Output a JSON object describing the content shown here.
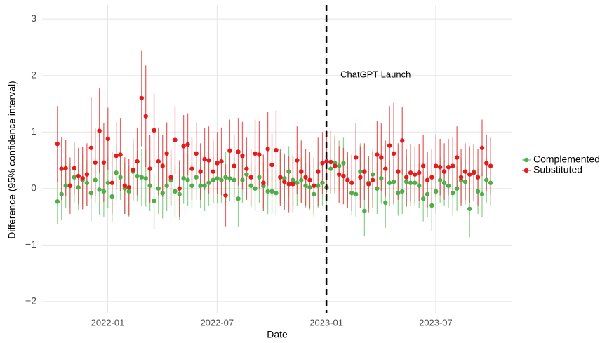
{
  "chart_data": {
    "type": "errorbar-points",
    "x_label": "Date",
    "y_label": "Difference (95% confidence interval)",
    "xlim": [
      2021.7,
      2023.85
    ],
    "ylim": [
      -2.2,
      3.25
    ],
    "xticks": [
      {
        "value": 2022.0,
        "label": "2022-01"
      },
      {
        "value": 2022.5,
        "label": "2022-07"
      },
      {
        "value": 2023.0,
        "label": "2023-01"
      },
      {
        "value": 2023.5,
        "label": "2023-07"
      }
    ],
    "yticks": [
      {
        "value": -2,
        "label": "−2"
      },
      {
        "value": -1,
        "label": "−1"
      },
      0,
      1,
      2,
      3
    ],
    "grid": true,
    "legend": "right",
    "vline": {
      "x": 2023.0,
      "label": "ChatGPT Launch"
    },
    "x": [
      2021.77,
      2021.789,
      2021.808,
      2021.828,
      2021.847,
      2021.866,
      2021.885,
      2021.905,
      2021.924,
      2021.943,
      2021.962,
      2021.982,
      2022.001,
      2022.02,
      2022.039,
      2022.058,
      2022.078,
      2022.097,
      2022.116,
      2022.135,
      2022.155,
      2022.174,
      2022.193,
      2022.212,
      2022.232,
      2022.251,
      2022.27,
      2022.289,
      2022.308,
      2022.328,
      2022.347,
      2022.366,
      2022.385,
      2022.405,
      2022.424,
      2022.443,
      2022.462,
      2022.482,
      2022.501,
      2022.52,
      2022.539,
      2022.558,
      2022.578,
      2022.597,
      2022.616,
      2022.635,
      2022.655,
      2022.674,
      2022.693,
      2022.712,
      2022.732,
      2022.751,
      2022.77,
      2022.789,
      2022.808,
      2022.828,
      2022.847,
      2022.866,
      2022.885,
      2022.905,
      2022.924,
      2022.943,
      2022.962,
      2022.982,
      2023.001,
      2023.02,
      2023.039,
      2023.058,
      2023.078,
      2023.097,
      2023.116,
      2023.135,
      2023.155,
      2023.174,
      2023.193,
      2023.212,
      2023.232,
      2023.251,
      2023.27,
      2023.289,
      2023.308,
      2023.328,
      2023.347,
      2023.366,
      2023.385,
      2023.405,
      2023.424,
      2023.443,
      2023.462,
      2023.482,
      2023.501,
      2023.52,
      2023.539,
      2023.558,
      2023.578,
      2023.597,
      2023.616,
      2023.635,
      2023.655,
      2023.674,
      2023.693,
      2023.712,
      2023.732,
      2023.751
    ],
    "series": [
      {
        "name": "Complemented",
        "color": "#4daf4a",
        "bar_color": "#7fc97f",
        "values": [
          -0.23,
          -0.1,
          0.05,
          0.05,
          0.2,
          0.02,
          0.15,
          0.1,
          -0.08,
          0.15,
          -0.02,
          -0.05,
          0.1,
          -0.14,
          0.28,
          0.2,
          0.0,
          -0.05,
          0.3,
          0.22,
          0.2,
          0.18,
          0.05,
          -0.22,
          0.0,
          -0.08,
          0.05,
          0.15,
          -0.05,
          -0.1,
          0.18,
          0.15,
          0.05,
          0.2,
          0.05,
          0.05,
          0.1,
          0.15,
          0.18,
          0.15,
          0.2,
          0.18,
          0.15,
          -0.18,
          0.15,
          0.25,
          0.05,
          0.0,
          0.2,
          0.05,
          -0.05,
          -0.05,
          -0.08,
          0.2,
          0.18,
          0.3,
          0.15,
          0.1,
          0.15,
          0.05,
          0.02,
          -0.1,
          0.05,
          0.1,
          0.02,
          0.35,
          0.45,
          0.4,
          0.45,
          0.15,
          -0.08,
          -0.1,
          0.3,
          -0.4,
          0.1,
          0.25,
          0.0,
          0.18,
          -0.25,
          0.1,
          0.12,
          -0.08,
          -0.05,
          0.12,
          0.1,
          0.1,
          0.05,
          -0.18,
          -0.1,
          -0.3,
          -0.05,
          0.15,
          0.1,
          0.05,
          -0.08,
          0.0,
          0.15,
          0.12,
          -0.36,
          0.3,
          -0.05,
          -0.1,
          0.15,
          0.1
        ],
        "errors": [
          0.4,
          0.45,
          0.4,
          0.4,
          0.45,
          0.4,
          0.45,
          0.4,
          0.5,
          0.4,
          0.45,
          0.45,
          0.45,
          0.45,
          0.5,
          0.4,
          0.45,
          0.45,
          0.5,
          0.45,
          0.5,
          0.5,
          0.45,
          0.5,
          0.45,
          0.45,
          0.45,
          0.45,
          0.45,
          0.45,
          0.45,
          0.45,
          0.4,
          0.4,
          0.4,
          0.45,
          0.4,
          0.4,
          0.45,
          0.4,
          0.45,
          0.4,
          0.4,
          0.5,
          0.4,
          0.45,
          0.4,
          0.4,
          0.45,
          0.4,
          0.4,
          0.4,
          0.4,
          0.45,
          0.4,
          0.45,
          0.45,
          0.4,
          0.4,
          0.4,
          0.4,
          0.4,
          0.4,
          0.4,
          0.4,
          0.45,
          0.5,
          0.45,
          0.45,
          0.4,
          0.4,
          0.4,
          0.5,
          0.45,
          0.45,
          0.45,
          0.45,
          0.45,
          0.45,
          0.4,
          0.4,
          0.4,
          0.4,
          0.45,
          0.4,
          0.4,
          0.4,
          0.4,
          0.4,
          0.45,
          0.4,
          0.4,
          0.4,
          0.4,
          0.4,
          0.4,
          0.4,
          0.4,
          0.5,
          0.45,
          0.4,
          0.4,
          0.4,
          0.4
        ]
      },
      {
        "name": "Substituted",
        "color": "#e41a1c",
        "bar_color": "#e34a4a",
        "values": [
          0.79,
          0.35,
          0.36,
          0.05,
          0.36,
          0.22,
          0.18,
          0.25,
          0.72,
          0.46,
          1.02,
          0.46,
          0.88,
          0.1,
          0.58,
          0.6,
          0.05,
          0.02,
          0.33,
          0.48,
          1.6,
          1.28,
          0.35,
          1.03,
          0.48,
          0.4,
          0.62,
          0.2,
          0.86,
          0.0,
          0.75,
          0.78,
          0.35,
          0.62,
          0.3,
          0.52,
          0.5,
          0.3,
          0.45,
          0.48,
          -0.12,
          0.67,
          0.4,
          0.65,
          0.58,
          0.35,
          0.2,
          0.62,
          0.6,
          0.1,
          0.7,
          0.42,
          0.68,
          0.2,
          0.12,
          0.08,
          0.08,
          0.5,
          0.3,
          0.2,
          0.15,
          0.05,
          0.3,
          0.45,
          0.48,
          0.47,
          0.4,
          0.25,
          0.22,
          0.15,
          0.1,
          0.55,
          0.2,
          0.3,
          0.08,
          0.15,
          0.6,
          0.55,
          0.35,
          0.76,
          0.62,
          0.3,
          0.85,
          0.2,
          0.28,
          0.25,
          0.28,
          0.4,
          0.15,
          0.2,
          0.4,
          0.38,
          0.3,
          0.38,
          0.4,
          0.55,
          0.2,
          0.3,
          0.25,
          0.28,
          0.2,
          0.72,
          0.45,
          0.4
        ],
        "errors": [
          0.67,
          0.55,
          0.5,
          0.5,
          0.45,
          0.5,
          0.55,
          0.55,
          0.9,
          0.6,
          0.75,
          0.7,
          0.55,
          0.55,
          0.6,
          0.65,
          0.5,
          0.5,
          0.55,
          0.6,
          0.85,
          0.9,
          0.6,
          0.65,
          0.6,
          0.55,
          0.55,
          0.5,
          0.6,
          0.5,
          0.55,
          0.55,
          0.55,
          0.55,
          0.5,
          0.55,
          0.6,
          0.55,
          0.55,
          0.6,
          0.55,
          0.55,
          0.55,
          0.6,
          0.6,
          0.55,
          0.5,
          0.6,
          0.6,
          0.5,
          0.65,
          0.55,
          0.7,
          0.5,
          0.5,
          0.5,
          0.5,
          0.6,
          0.55,
          0.5,
          0.5,
          0.5,
          0.6,
          0.55,
          0.55,
          0.55,
          0.5,
          0.5,
          0.5,
          0.5,
          0.5,
          0.6,
          0.55,
          0.5,
          0.5,
          0.5,
          0.6,
          0.6,
          0.5,
          0.7,
          0.9,
          0.5,
          0.6,
          0.5,
          0.5,
          0.5,
          0.5,
          0.55,
          0.5,
          0.5,
          0.55,
          0.5,
          0.5,
          0.5,
          0.5,
          0.55,
          0.5,
          0.5,
          0.5,
          0.5,
          0.5,
          0.5,
          0.5,
          0.5
        ]
      }
    ]
  }
}
